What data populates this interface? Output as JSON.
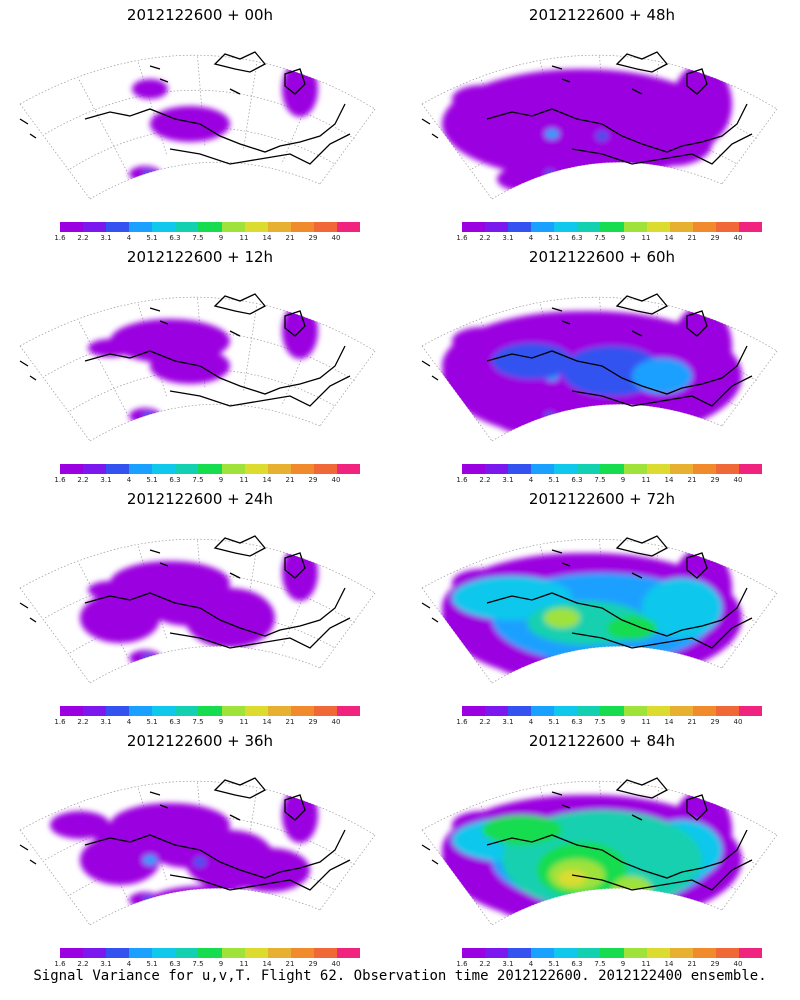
{
  "footer": "Signal Variance for u,v,T. Flight 62. Observation time 2012122600. 2012122400 ensemble.",
  "colorbar": {
    "colors": [
      "#9b00e0",
      "#7a18ee",
      "#3352f0",
      "#1aa0ff",
      "#10c8ec",
      "#12d0b0",
      "#18dc50",
      "#9ee23a",
      "#dcdc30",
      "#e8b030",
      "#f08a2c",
      "#f06838",
      "#f0247e"
    ],
    "ticks": [
      "1.6",
      "2.2",
      "3.1",
      "4",
      "5.1",
      "6.3",
      "7.5",
      "9",
      "11",
      "14",
      "21",
      "29",
      "40"
    ]
  },
  "panels": [
    {
      "title": "2012122600 + 00h",
      "column": "left",
      "row": 0,
      "intensity": 0
    },
    {
      "title": "2012122600 + 12h",
      "column": "left",
      "row": 1,
      "intensity": 1
    },
    {
      "title": "2012122600 + 24h",
      "column": "left",
      "row": 2,
      "intensity": 2
    },
    {
      "title": "2012122600 + 36h",
      "column": "left",
      "row": 3,
      "intensity": 3
    },
    {
      "title": "2012122600 + 48h",
      "column": "right",
      "row": 0,
      "intensity": 4
    },
    {
      "title": "2012122600 + 60h",
      "column": "right",
      "row": 1,
      "intensity": 5
    },
    {
      "title": "2012122600 + 72h",
      "column": "right",
      "row": 2,
      "intensity": 6
    },
    {
      "title": "2012122600 + 84h",
      "column": "right",
      "row": 3,
      "intensity": 7
    }
  ]
}
